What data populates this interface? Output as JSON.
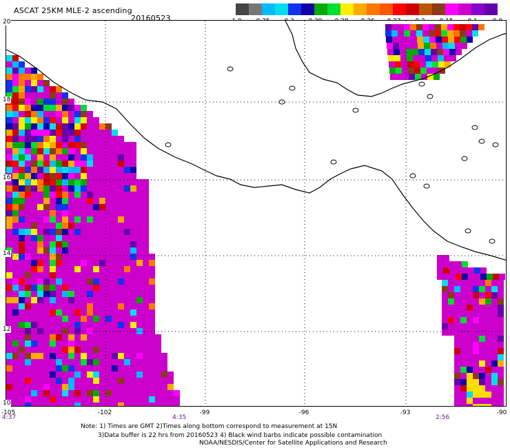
{
  "header": {
    "title": "ASCAT 25KM MLE-2 ascending",
    "date": "20160523"
  },
  "colorbar": {
    "colors": [
      "#444444",
      "#777777",
      "#00bbff",
      "#00ddee",
      "#1133ee",
      "#1100aa",
      "#00aa00",
      "#00dd33",
      "#ffee00",
      "#ffaa00",
      "#ff7700",
      "#ff5500",
      "#ff0000",
      "#cc0000",
      "#bb5500",
      "#8b3a1a",
      "#ff00ff",
      "#cc00cc",
      "#8800cc",
      "#6600aa"
    ],
    "labels": [
      "-1.0",
      "-0.35",
      "-0.3",
      "-0.29",
      "-0.28",
      "-0.26",
      "-0.23",
      "-0.2",
      "-0.15",
      "-0.1",
      "0.0"
    ]
  },
  "axes": {
    "lat_labels": [
      "20",
      "18",
      "16",
      "14",
      "12",
      "10"
    ],
    "lon_labels": [
      "-105",
      "-102",
      "-99",
      "-96",
      "-93",
      "-90"
    ]
  },
  "times": {
    "left": "4:37",
    "middle": "4:35",
    "right": "2:56"
  },
  "notes": {
    "line1": "Note: 1) Times are GMT 2)Times along bottom correspond to measurement at 15N",
    "line2": "3)Data buffer is 22 hrs from 20160523 4) Black wind barbs indicate possible contamination",
    "line3": "NOAA/NESDIS/Center for Satellite Applications and Research"
  },
  "palette": {
    "magenta": "#cc00cc",
    "coast": "#000000",
    "grid": "#000000"
  }
}
